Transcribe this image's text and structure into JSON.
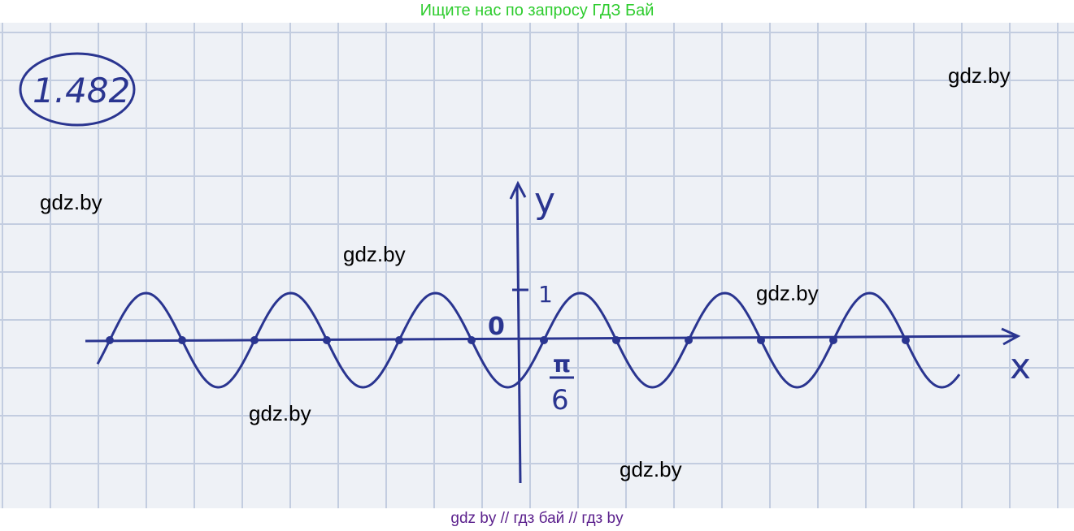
{
  "header": {
    "text": "Ищите нас по запросу ГДЗ Бай"
  },
  "footer": {
    "text": "gdz by  //  гдз бай  //  гдз by"
  },
  "problem_number": "1.482",
  "graph": {
    "y_axis_label": "y",
    "x_axis_label": "x",
    "origin_label": "0",
    "y_tick_label": "1",
    "x_tick_label_num": "π",
    "x_tick_label_den": "6",
    "ink_color": "#2a3590"
  },
  "watermarks": [
    "gdz.by",
    "gdz.by",
    "gdz.by",
    "gdz.by",
    "gdz.by",
    "gdz.by"
  ]
}
